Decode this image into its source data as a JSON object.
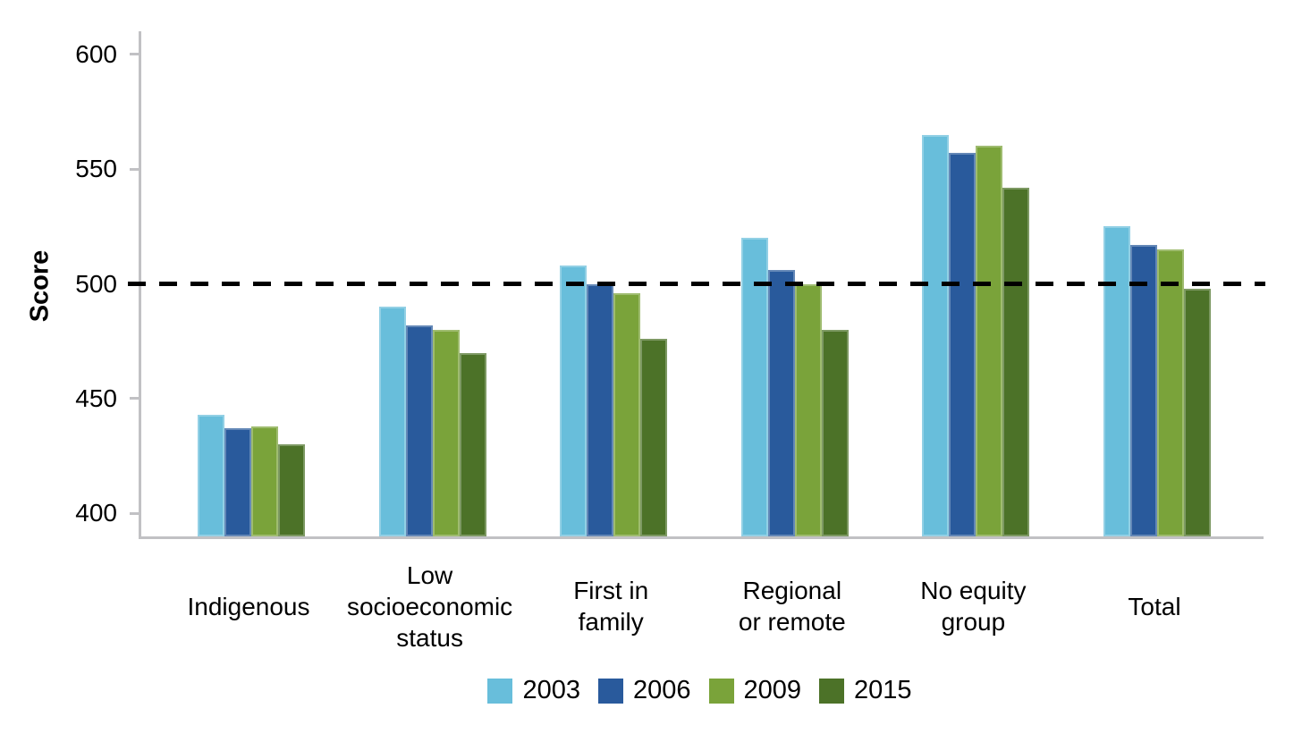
{
  "chart_data": {
    "type": "bar",
    "title": "",
    "ylabel": "Score",
    "xlabel": "",
    "categories": [
      "Indigenous",
      "Low\nsocioeconomic\nstatus",
      "First in\nfamily",
      "Regional\nor remote",
      "No equity\ngroup",
      "Total"
    ],
    "series": [
      {
        "name": "2003",
        "color": "#68bedb",
        "values": [
          443,
          490,
          508,
          520,
          565,
          525
        ]
      },
      {
        "name": "2006",
        "color": "#295a9c",
        "values": [
          437,
          482,
          500,
          506,
          557,
          517
        ]
      },
      {
        "name": "2009",
        "color": "#7aa33a",
        "values": [
          438,
          480,
          496,
          500,
          560,
          515
        ]
      },
      {
        "name": "2015",
        "color": "#4c7228",
        "values": [
          430,
          470,
          476,
          480,
          542,
          498
        ]
      }
    ],
    "ylim": [
      390,
      610
    ],
    "yticks": [
      400,
      450,
      500,
      550,
      600
    ],
    "reference_line": {
      "value": 500,
      "style": "dashed",
      "color": "#000000"
    },
    "legend_position": "bottom",
    "grid": false,
    "axis_color": "#c1c1c4"
  }
}
